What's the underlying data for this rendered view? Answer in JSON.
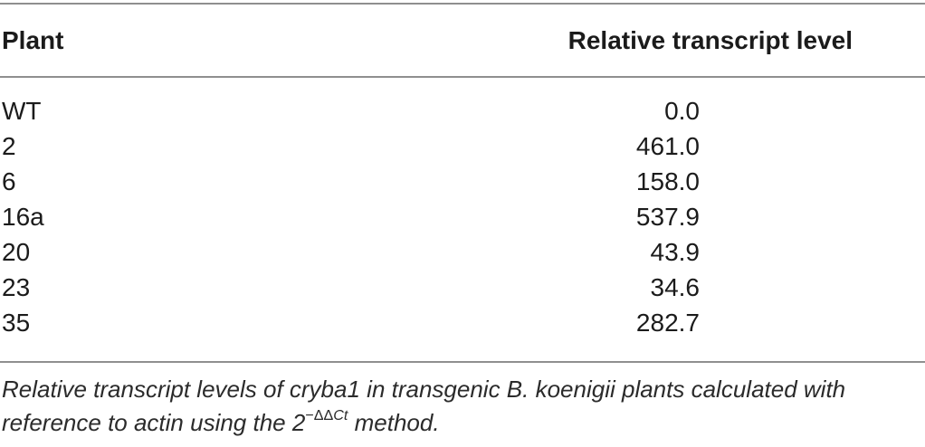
{
  "table": {
    "header": {
      "plant": "Plant",
      "value": "Relative transcript level"
    },
    "rows": [
      {
        "plant": "WT",
        "value": "0.0"
      },
      {
        "plant": "2",
        "value": "461.0"
      },
      {
        "plant": "6",
        "value": "158.0"
      },
      {
        "plant": "16a",
        "value": "537.9"
      },
      {
        "plant": "20",
        "value": "43.9"
      },
      {
        "plant": "23",
        "value": "34.6"
      },
      {
        "plant": "35",
        "value": "282.7"
      }
    ]
  },
  "caption": {
    "line1": "Relative transcript levels of cryba1 in transgenic B. koenigii plants calculated with",
    "line2_pre": "reference to actin using the 2",
    "sup_symbols": "−ΔΔ",
    "sup_gene": "Ct",
    "line2_post": " method."
  },
  "chart_data": {
    "type": "table",
    "columns": [
      "Plant",
      "Relative transcript level"
    ],
    "rows": [
      [
        "WT",
        0.0
      ],
      [
        "2",
        461.0
      ],
      [
        "6",
        158.0
      ],
      [
        "16a",
        537.9
      ],
      [
        "20",
        43.9
      ],
      [
        "23",
        34.6
      ],
      [
        "35",
        282.7
      ]
    ]
  },
  "colors": {
    "rule": "#8f8f8f",
    "text": "#1b1b1b",
    "caption_text": "#2b2b2b"
  }
}
